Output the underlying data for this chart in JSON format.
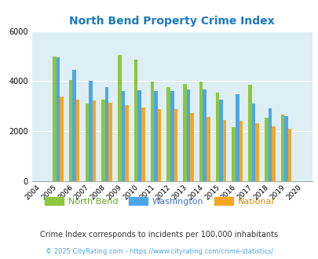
{
  "title": "North Bend Property Crime Index",
  "years": [
    2004,
    2005,
    2006,
    2007,
    2008,
    2009,
    2010,
    2011,
    2012,
    2013,
    2014,
    2015,
    2016,
    2017,
    2018,
    2019,
    2020
  ],
  "north_bend": [
    0,
    5000,
    4050,
    3100,
    3250,
    5050,
    4850,
    3980,
    3750,
    3900,
    3980,
    3550,
    2150,
    3850,
    2550,
    2650,
    0
  ],
  "washington": [
    0,
    4950,
    4450,
    4020,
    3750,
    3620,
    3650,
    3600,
    3600,
    3680,
    3680,
    3250,
    3480,
    3100,
    2920,
    2600,
    0
  ],
  "national": [
    0,
    3370,
    3270,
    3220,
    3150,
    3030,
    2940,
    2870,
    2870,
    2730,
    2580,
    2450,
    2400,
    2330,
    2200,
    2100,
    0
  ],
  "bar_colors": {
    "north_bend": "#8dc63f",
    "washington": "#4da6e8",
    "national": "#f5a623"
  },
  "ylim": [
    0,
    6000
  ],
  "yticks": [
    0,
    2000,
    4000,
    6000
  ],
  "plot_bg": "#ddeef4",
  "legend_labels": [
    "North Bend",
    "Washington",
    "National"
  ],
  "legend_text_colors": [
    "#6aaa1e",
    "#4472c4",
    "#d4900a"
  ],
  "footnote1": "Crime Index corresponds to incidents per 100,000 inhabitants",
  "footnote2": "© 2025 CityRating.com - https://www.cityrating.com/crime-statistics/",
  "title_color": "#1a7abf",
  "footnote1_color": "#333333",
  "footnote2_color": "#4da6e8"
}
